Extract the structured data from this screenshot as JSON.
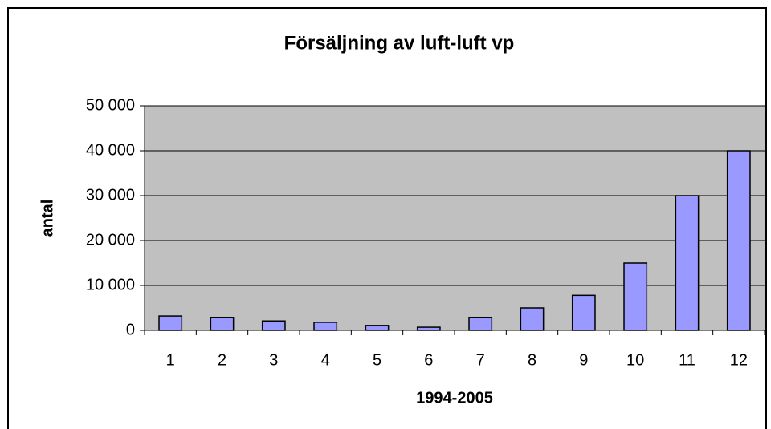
{
  "chart_data": {
    "type": "bar",
    "title": "Försäljning  av luft-luft vp",
    "x_label": "1994-2005",
    "y_label": "antal",
    "categories": [
      "1",
      "2",
      "3",
      "4",
      "5",
      "6",
      "7",
      "8",
      "9",
      "10",
      "11",
      "12"
    ],
    "values": [
      3200,
      2900,
      2100,
      1800,
      1100,
      700,
      2900,
      5000,
      7800,
      15000,
      30000,
      40000
    ],
    "color": "#9999ff",
    "ylim": [
      0,
      50000
    ],
    "yticks": [
      0,
      {
        "value": 10000,
        "label": "10 000"
      },
      {
        "value": 20000,
        "label": "20 000"
      },
      {
        "value": 30000,
        "label": "30 000"
      },
      {
        "value": 40000,
        "label": "40 000"
      },
      {
        "value": 50000,
        "label": "50 000"
      }
    ],
    "grid": true
  }
}
